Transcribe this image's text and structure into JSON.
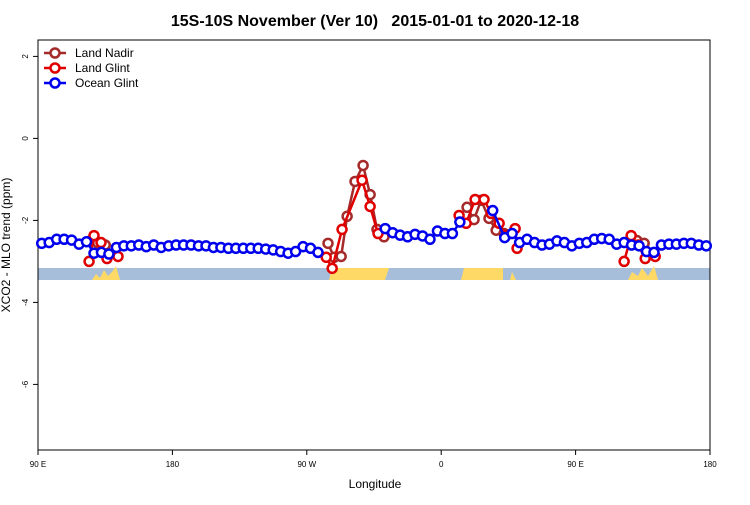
{
  "chart_data": {
    "type": "line",
    "title": "15S-10S November (Ver 10)   2015-01-01 to 2020-12-18",
    "x_label": "Longitude",
    "y_label": "XCO2 - MLO trend (ppm)",
    "xlim": [
      90,
      540
    ],
    "ylim": [
      -7.6,
      2.4
    ],
    "xticks": [
      {
        "value": 90,
        "label": "90 E"
      },
      180,
      {
        "value": 270,
        "label": "90 W"
      },
      {
        "value": 360,
        "label": "0"
      },
      {
        "value": 450,
        "label": "90 E"
      },
      {
        "value": 540,
        "label": "180"
      }
    ],
    "yticks": [
      -6,
      -4,
      -2,
      0,
      2
    ],
    "legend": "top-left",
    "series": [
      {
        "name": "Land Nadir",
        "color": "#a52a2a",
        "x": [
          125,
          130,
          135,
          200,
          284.2,
          288.3,
          293,
          297,
          302.3,
          307.7,
          312.4,
          317,
          321.7,
          350,
          377.3,
          382,
          386.7,
          392,
          396.8,
          402.1,
          450,
          491,
          495.9
        ],
        "values": [
          -2.5,
          -2.55,
          -2.6,
          null,
          -2.56,
          -2.9,
          -2.88,
          -1.9,
          -1.05,
          -0.66,
          -1.37,
          -2.22,
          -2.4,
          null,
          -1.68,
          -1.98,
          -1.51,
          -1.95,
          -2.24,
          -2.32,
          null,
          -2.49,
          -2.56
        ]
      },
      {
        "name": "Land Glint",
        "color": "#e00000",
        "x": [
          124.2,
          127.5,
          132.2,
          136.2,
          143.6,
          200,
          283,
          287,
          293.6,
          307,
          312.4,
          317.7,
          350,
          372,
          376.7,
          382.7,
          388.7,
          393.4,
          398.8,
          403.5,
          409.5,
          410.8,
          450,
          482.5,
          487.2,
          491.9,
          496.6,
          503.3
        ],
        "values": [
          -3.0,
          -2.37,
          -2.54,
          -2.93,
          -2.88,
          null,
          -2.9,
          -3.17,
          -2.22,
          -1.02,
          -1.66,
          -2.32,
          null,
          -1.88,
          -2.07,
          -1.49,
          -1.49,
          -1.83,
          -2.07,
          -2.37,
          -2.2,
          -2.68,
          null,
          -3.0,
          -2.37,
          -2.6,
          -2.93,
          -2.88
        ]
      },
      {
        "name": "Ocean Glint",
        "color": "#0000ee",
        "x": [
          92.5,
          97.5,
          102.5,
          107.5,
          112.5,
          117.5,
          122.5,
          127.5,
          132.5,
          137.5,
          142.5,
          147.5,
          152.5,
          157.5,
          162.5,
          167.5,
          172.5,
          177.5,
          182.5,
          187.5,
          192.5,
          197.5,
          202.5,
          207.5,
          212.5,
          217.5,
          222.5,
          227.5,
          232.5,
          237.5,
          242.5,
          247.5,
          252.5,
          257.5,
          262.5,
          267.5,
          272.5,
          277.5,
          300,
          322.5,
          327.5,
          332.5,
          337.5,
          342.5,
          347.5,
          352.5,
          357.5,
          362.5,
          367.5,
          372.5,
          383,
          394.5,
          402.5,
          407.5,
          412.5,
          417.5,
          422.5,
          427.5,
          432.5,
          437.5,
          442.5,
          447.5,
          452.5,
          457.5,
          462.5,
          467.5,
          472.5,
          477.5,
          482.5,
          487.5,
          492.5,
          497.5,
          502.5,
          507.5,
          512.5,
          517.5,
          522.5,
          527.5,
          532.5,
          537.5
        ],
        "values": [
          -2.56,
          -2.54,
          -2.46,
          -2.46,
          -2.48,
          -2.58,
          -2.52,
          -2.8,
          -2.78,
          -2.82,
          -2.66,
          -2.62,
          -2.62,
          -2.6,
          -2.64,
          -2.6,
          -2.66,
          -2.62,
          -2.6,
          -2.6,
          -2.6,
          -2.62,
          -2.62,
          -2.66,
          -2.66,
          -2.68,
          -2.68,
          -2.68,
          -2.68,
          -2.68,
          -2.7,
          -2.72,
          -2.76,
          -2.8,
          -2.76,
          -2.64,
          -2.68,
          -2.78,
          null,
          -2.2,
          -2.3,
          -2.36,
          -2.4,
          -2.34,
          -2.38,
          -2.46,
          -2.26,
          -2.32,
          -2.32,
          -2.04,
          null,
          -1.76,
          -2.42,
          -2.32,
          -2.54,
          -2.46,
          -2.54,
          -2.6,
          -2.58,
          -2.5,
          -2.54,
          -2.62,
          -2.56,
          -2.54,
          -2.46,
          -2.44,
          -2.46,
          -2.58,
          -2.54,
          -2.6,
          -2.62,
          -2.76,
          -2.78,
          -2.6,
          -2.58,
          -2.58,
          -2.56,
          -2.56,
          -2.6,
          -2.62
        ]
      }
    ]
  }
}
